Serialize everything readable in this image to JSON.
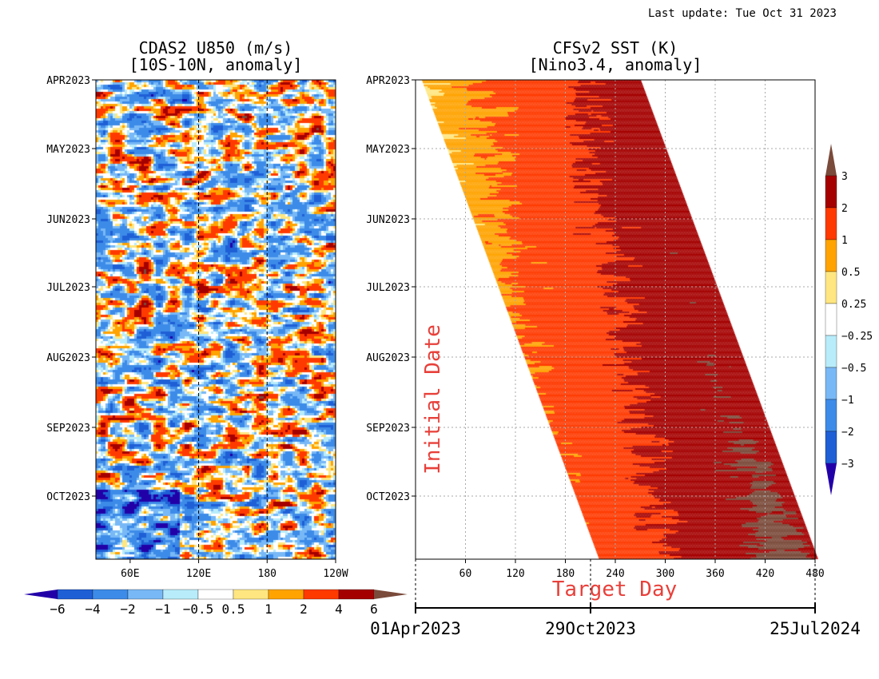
{
  "last_update": "Last update: Tue Oct 31 2023",
  "colors": {
    "accent_label": "#e8403a",
    "shade_neg": [
      "#2200a8",
      "#1f5fd6",
      "#3d8be8",
      "#78b8f6",
      "#b8ecfa"
    ],
    "shade_pos": [
      "#ffe680",
      "#ffa300",
      "#ff3a00",
      "#a50000",
      "#7a4a3a"
    ]
  },
  "chart_data": [
    {
      "type": "heatmap",
      "title": "CDAS2 U850 (m/s)",
      "subtitle": "[10S-10N, anomaly]",
      "y_ticks": [
        "APR2023",
        "MAY2023",
        "JUN2023",
        "JUL2023",
        "AUG2023",
        "SEP2023",
        "OCT2023"
      ],
      "y_range": [
        "01Apr2023",
        "31Oct2023"
      ],
      "x_ticks": [
        "60E",
        "120E",
        "180",
        "120W"
      ],
      "x_range_lon": [
        30,
        240
      ],
      "dashed_lines_at": [
        "120E",
        "180"
      ],
      "colorbar": {
        "levels": [
          -6,
          -4,
          -2,
          -1,
          -0.5,
          0.5,
          1,
          2,
          4,
          6
        ],
        "tick_labels": [
          "−6",
          "−4",
          "−2",
          "−1",
          "−0.5",
          "0.5",
          "1",
          "2",
          "4",
          "6"
        ]
      }
    },
    {
      "type": "heatmap",
      "title": "CFSv2 SST (K)",
      "subtitle": "[Nino3.4, anomaly]",
      "y_ticks": [
        "APR2023",
        "MAY2023",
        "JUN2023",
        "JUL2023",
        "AUG2023",
        "SEP2023",
        "OCT2023"
      ],
      "ylabel": "Initial Date",
      "x_ticks": [
        "60",
        "120",
        "180",
        "240",
        "300",
        "360",
        "420",
        "480"
      ],
      "xlabel": "Target Day",
      "x_range": [
        0,
        480
      ],
      "forecast_length_days": 270,
      "grid": true,
      "colorbar": {
        "levels": [
          -3,
          -2,
          -1,
          -0.5,
          -0.25,
          0.25,
          0.5,
          1,
          2,
          3
        ],
        "tick_labels": [
          "−3",
          "−2",
          "−1",
          "−0.5",
          "−0.25",
          "0.25",
          "0.5",
          "1",
          "2",
          "3"
        ]
      },
      "date_axis": [
        "01Apr2023",
        "29Oct2023",
        "25Jul2024"
      ]
    }
  ]
}
